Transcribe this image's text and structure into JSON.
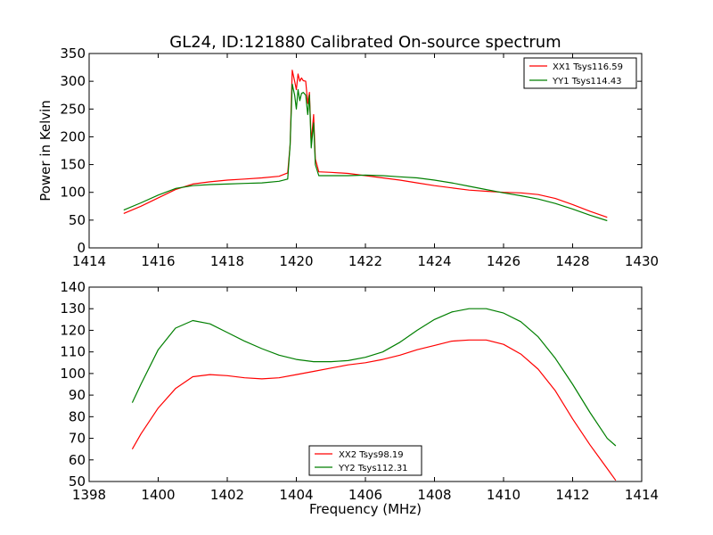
{
  "chart_data": [
    {
      "type": "line",
      "title": "GL24, ID:121880 Calibrated On-source spectrum",
      "xlabel": "",
      "ylabel": "Power in Kelvin",
      "xlim": [
        1414,
        1430
      ],
      "ylim": [
        0,
        350
      ],
      "xticks": [
        "1414",
        "1416",
        "1418",
        "1420",
        "1422",
        "1424",
        "1426",
        "1428",
        "1430"
      ],
      "yticks": [
        "0",
        "50",
        "100",
        "150",
        "200",
        "250",
        "300",
        "350"
      ],
      "legend_position": "top-right",
      "series": [
        {
          "name": "XX1 Tsys116.59",
          "color": "#ff0000",
          "points": [
            [
              1415.0,
              62
            ],
            [
              1415.5,
              75
            ],
            [
              1416.0,
              90
            ],
            [
              1416.5,
              105
            ],
            [
              1417.0,
              115
            ],
            [
              1417.5,
              119
            ],
            [
              1418.0,
              122
            ],
            [
              1418.5,
              124
            ],
            [
              1419.0,
              126
            ],
            [
              1419.5,
              129
            ],
            [
              1419.75,
              135
            ],
            [
              1419.82,
              185
            ],
            [
              1419.88,
              320
            ],
            [
              1419.95,
              300
            ],
            [
              1420.0,
              285
            ],
            [
              1420.05,
              313
            ],
            [
              1420.1,
              300
            ],
            [
              1420.15,
              306
            ],
            [
              1420.2,
              301
            ],
            [
              1420.27,
              300
            ],
            [
              1420.33,
              260
            ],
            [
              1420.38,
              280
            ],
            [
              1420.43,
              190
            ],
            [
              1420.5,
              240
            ],
            [
              1420.55,
              160
            ],
            [
              1420.65,
              137
            ],
            [
              1421.0,
              136
            ],
            [
              1421.5,
              134
            ],
            [
              1422.0,
              130
            ],
            [
              1422.5,
              126
            ],
            [
              1423.0,
              122
            ],
            [
              1423.5,
              117
            ],
            [
              1424.0,
              112
            ],
            [
              1424.5,
              108
            ],
            [
              1425.0,
              104
            ],
            [
              1425.5,
              102
            ],
            [
              1426.0,
              100
            ],
            [
              1426.5,
              99
            ],
            [
              1427.0,
              96
            ],
            [
              1427.5,
              89
            ],
            [
              1428.0,
              78
            ],
            [
              1428.5,
              66
            ],
            [
              1429.0,
              55
            ]
          ]
        },
        {
          "name": "YY1 Tsys114.43",
          "color": "#007f00",
          "points": [
            [
              1415.0,
              68
            ],
            [
              1415.5,
              81
            ],
            [
              1416.0,
              95
            ],
            [
              1416.5,
              107
            ],
            [
              1417.0,
              112
            ],
            [
              1417.5,
              114
            ],
            [
              1418.0,
              115
            ],
            [
              1418.5,
              116
            ],
            [
              1419.0,
              117
            ],
            [
              1419.5,
              120
            ],
            [
              1419.75,
              124
            ],
            [
              1419.82,
              185
            ],
            [
              1419.88,
              295
            ],
            [
              1419.95,
              275
            ],
            [
              1420.0,
              250
            ],
            [
              1420.05,
              285
            ],
            [
              1420.1,
              265
            ],
            [
              1420.15,
              278
            ],
            [
              1420.2,
              280
            ],
            [
              1420.27,
              275
            ],
            [
              1420.33,
              240
            ],
            [
              1420.38,
              275
            ],
            [
              1420.43,
              180
            ],
            [
              1420.5,
              225
            ],
            [
              1420.55,
              150
            ],
            [
              1420.65,
              130
            ],
            [
              1421.0,
              130
            ],
            [
              1421.5,
              130
            ],
            [
              1422.0,
              131
            ],
            [
              1422.5,
              130
            ],
            [
              1423.0,
              128
            ],
            [
              1423.5,
              126
            ],
            [
              1424.0,
              122
            ],
            [
              1424.5,
              117
            ],
            [
              1425.0,
              111
            ],
            [
              1425.5,
              105
            ],
            [
              1426.0,
              99
            ],
            [
              1426.5,
              94
            ],
            [
              1427.0,
              88
            ],
            [
              1427.5,
              80
            ],
            [
              1428.0,
              70
            ],
            [
              1428.5,
              59
            ],
            [
              1429.0,
              49
            ]
          ]
        }
      ]
    },
    {
      "type": "line",
      "title": "",
      "xlabel": "Frequency (MHz)",
      "ylabel": "",
      "xlim": [
        1398,
        1414
      ],
      "ylim": [
        50,
        140
      ],
      "xticks": [
        "1398",
        "1400",
        "1402",
        "1404",
        "1406",
        "1408",
        "1410",
        "1412",
        "1414"
      ],
      "yticks": [
        "50",
        "60",
        "70",
        "80",
        "90",
        "100",
        "110",
        "120",
        "130",
        "140"
      ],
      "legend_position": "bottom-center",
      "series": [
        {
          "name": "XX2 Tsys98.19",
          "color": "#ff0000",
          "points": [
            [
              1399.25,
              65
            ],
            [
              1399.5,
              72
            ],
            [
              1400.0,
              84
            ],
            [
              1400.5,
              93
            ],
            [
              1401.0,
              98.5
            ],
            [
              1401.5,
              99.5
            ],
            [
              1402.0,
              99
            ],
            [
              1402.5,
              98
            ],
            [
              1403.0,
              97.5
            ],
            [
              1403.5,
              98
            ],
            [
              1404.0,
              99.5
            ],
            [
              1404.5,
              101
            ],
            [
              1405.0,
              102.5
            ],
            [
              1405.5,
              104
            ],
            [
              1406.0,
              105
            ],
            [
              1406.5,
              106.5
            ],
            [
              1407.0,
              108.5
            ],
            [
              1407.5,
              111
            ],
            [
              1408.0,
              113
            ],
            [
              1408.5,
              115
            ],
            [
              1409.0,
              115.5
            ],
            [
              1409.5,
              115.5
            ],
            [
              1410.0,
              113.5
            ],
            [
              1410.5,
              109
            ],
            [
              1411.0,
              102
            ],
            [
              1411.5,
              92
            ],
            [
              1412.0,
              79
            ],
            [
              1412.5,
              67
            ],
            [
              1413.0,
              56
            ],
            [
              1413.25,
              50.5
            ]
          ]
        },
        {
          "name": "YY2 Tsys112.31",
          "color": "#007f00",
          "points": [
            [
              1399.25,
              86.5
            ],
            [
              1399.5,
              95
            ],
            [
              1400.0,
              111
            ],
            [
              1400.5,
              121
            ],
            [
              1401.0,
              124.5
            ],
            [
              1401.5,
              123
            ],
            [
              1402.0,
              119
            ],
            [
              1402.5,
              115
            ],
            [
              1403.0,
              111.5
            ],
            [
              1403.5,
              108.5
            ],
            [
              1404.0,
              106.5
            ],
            [
              1404.5,
              105.5
            ],
            [
              1405.0,
              105.5
            ],
            [
              1405.5,
              106
            ],
            [
              1406.0,
              107.5
            ],
            [
              1406.5,
              110
            ],
            [
              1407.0,
              114.5
            ],
            [
              1407.5,
              120
            ],
            [
              1408.0,
              125
            ],
            [
              1408.5,
              128.5
            ],
            [
              1409.0,
              130
            ],
            [
              1409.5,
              130
            ],
            [
              1410.0,
              128
            ],
            [
              1410.5,
              124
            ],
            [
              1411.0,
              117
            ],
            [
              1411.5,
              107
            ],
            [
              1412.0,
              95
            ],
            [
              1412.5,
              82
            ],
            [
              1413.0,
              70
            ],
            [
              1413.25,
              66.5
            ]
          ]
        }
      ]
    }
  ]
}
